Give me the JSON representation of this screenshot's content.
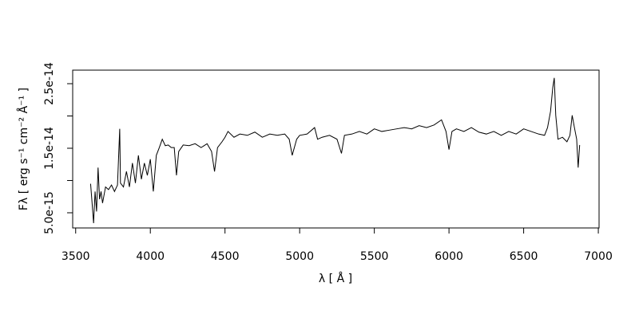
{
  "chart_data": {
    "type": "line",
    "x_label": "λ [ Å ]",
    "y_label": "Fλ [ erg s⁻¹ cm⁻² Å⁻¹ ]",
    "color": "#000000",
    "x": [
      3600,
      3610,
      3620,
      3630,
      3640,
      3650,
      3660,
      3670,
      3680,
      3700,
      3720,
      3740,
      3760,
      3780,
      3795,
      3800,
      3820,
      3840,
      3860,
      3880,
      3900,
      3920,
      3940,
      3960,
      3980,
      4000,
      4020,
      4040,
      4060,
      4080,
      4100,
      4120,
      4140,
      4160,
      4175,
      4190,
      4220,
      4260,
      4300,
      4340,
      4380,
      4410,
      4430,
      4450,
      4480,
      4500,
      4520,
      4560,
      4600,
      4650,
      4700,
      4750,
      4800,
      4850,
      4900,
      4930,
      4950,
      4980,
      5000,
      5050,
      5100,
      5120,
      5150,
      5200,
      5250,
      5280,
      5300,
      5350,
      5400,
      5450,
      5500,
      5550,
      5600,
      5650,
      5700,
      5750,
      5800,
      5850,
      5900,
      5950,
      5980,
      6000,
      6020,
      6050,
      6100,
      6150,
      6200,
      6250,
      6300,
      6350,
      6400,
      6450,
      6500,
      6550,
      6600,
      6640,
      6660,
      6680,
      6695,
      6705,
      6715,
      6730,
      6760,
      6790,
      6810,
      6825,
      6840,
      6855,
      6865,
      6875
    ],
    "values": [
      9.5e-15,
      6.5e-15,
      3.4e-15,
      8.3e-15,
      5.2e-15,
      1.2e-14,
      7.1e-15,
      8.3e-15,
      6.5e-15,
      9e-15,
      8.6e-15,
      9.3e-15,
      8.3e-15,
      9.3e-15,
      1.8e-14,
      9.6e-15,
      9e-15,
      1.14e-14,
      9e-15,
      1.27e-14,
      9.6e-15,
      1.39e-14,
      1.02e-14,
      1.27e-14,
      1.08e-14,
      1.33e-14,
      8.3e-15,
      1.39e-14,
      1.51e-14,
      1.64e-14,
      1.54e-14,
      1.55e-14,
      1.51e-14,
      1.51e-14,
      1.08e-14,
      1.45e-14,
      1.55e-14,
      1.54e-14,
      1.57e-14,
      1.51e-14,
      1.57e-14,
      1.45e-14,
      1.14e-14,
      1.51e-14,
      1.6e-14,
      1.67e-14,
      1.76e-14,
      1.67e-14,
      1.72e-14,
      1.7e-14,
      1.75e-14,
      1.67e-14,
      1.72e-14,
      1.7e-14,
      1.72e-14,
      1.64e-14,
      1.39e-14,
      1.64e-14,
      1.7e-14,
      1.72e-14,
      1.82e-14,
      1.64e-14,
      1.67e-14,
      1.7e-14,
      1.64e-14,
      1.42e-14,
      1.7e-14,
      1.72e-14,
      1.76e-14,
      1.72e-14,
      1.8e-14,
      1.76e-14,
      1.78e-14,
      1.8e-14,
      1.82e-14,
      1.8e-14,
      1.85e-14,
      1.82e-14,
      1.86e-14,
      1.94e-14,
      1.76e-14,
      1.48e-14,
      1.76e-14,
      1.8e-14,
      1.76e-14,
      1.82e-14,
      1.75e-14,
      1.72e-14,
      1.76e-14,
      1.7e-14,
      1.76e-14,
      1.72e-14,
      1.8e-14,
      1.76e-14,
      1.72e-14,
      1.7e-14,
      1.82e-14,
      2.07e-14,
      2.44e-14,
      2.59e-14,
      2.01e-14,
      1.64e-14,
      1.67e-14,
      1.6e-14,
      1.7e-14,
      2.01e-14,
      1.82e-14,
      1.64e-14,
      1.2e-14,
      1.55e-14
    ],
    "xlim": [
      3480,
      7005
    ],
    "xticks": [
      3500,
      4000,
      4500,
      5000,
      5500,
      6000,
      6500,
      7000
    ],
    "ylim": [
      2.65e-15,
      2.71e-14
    ],
    "yticks": [
      {
        "value": 5e-15,
        "label": "5.0e-15"
      },
      {
        "value": 1e-14,
        "label": null
      },
      1.5e-14,
      {
        "value": 2e-14,
        "label": null
      },
      2.5e-14
    ]
  }
}
